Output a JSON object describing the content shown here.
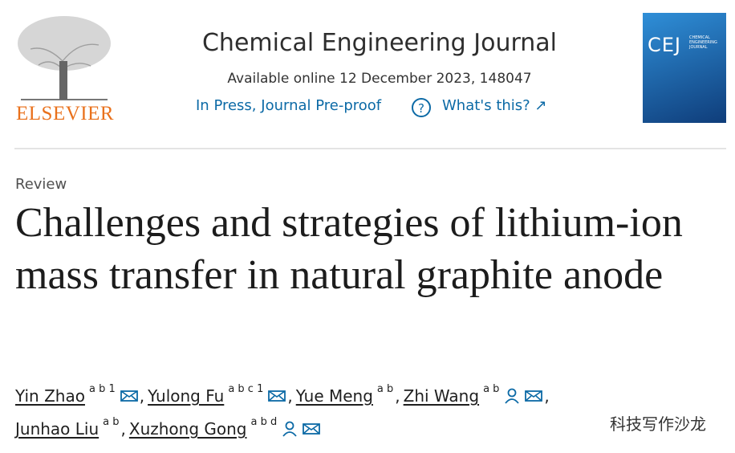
{
  "header": {
    "publisher": "ELSEVIER",
    "journal": "Chemical Engineering Journal",
    "availability": "Available online 12 December 2023, 148047",
    "status": "In Press, Journal Pre-proof",
    "help": "What's this?",
    "cover": {
      "abbrev": "CEJ",
      "name": "CHEMICAL ENGINEERING JOURNAL"
    }
  },
  "article": {
    "type": "Review",
    "title": "Challenges and strategies of lithium-ion mass transfer in natural graphite anode",
    "authors": [
      {
        "name": "Yin Zhao",
        "sup": "a b 1",
        "sep": ","
      },
      {
        "name": "Yulong Fu",
        "sup": "a b c 1",
        "sep": ","
      },
      {
        "name": "Yue Meng",
        "sup": "a b",
        "sep": ","
      },
      {
        "name": "Zhi Wang",
        "sup": "a b",
        "sep": ","
      },
      {
        "name": "Junhao Liu",
        "sup": "a b",
        "sep": ","
      },
      {
        "name": "Xuzhong Gong",
        "sup": "a b d"
      }
    ]
  },
  "watermark": "科技写作沙龙"
}
